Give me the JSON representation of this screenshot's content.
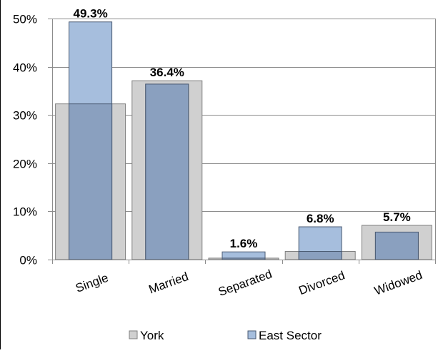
{
  "chart_data": {
    "type": "bar",
    "categories": [
      "Single",
      "Married",
      "Separated",
      "Divorced",
      "Widowed"
    ],
    "series": [
      {
        "name": "York",
        "values": [
          32.3,
          37.1,
          0.3,
          1.7,
          7.1
        ],
        "color": "#d0d0d0"
      },
      {
        "name": "East Sector",
        "values": [
          49.3,
          36.4,
          1.6,
          6.8,
          5.7
        ],
        "color": "#a6bedd"
      }
    ],
    "overlap_color": "#8aa0bf",
    "data_labels": [
      "49.3%",
      "36.4%",
      "1.6%",
      "6.8%",
      "5.7%"
    ],
    "y_ticks": [
      "0%",
      "10%",
      "20%",
      "30%",
      "40%",
      "50%"
    ],
    "ylim": [
      0,
      50
    ],
    "grid": true,
    "legend_position": "bottom"
  }
}
